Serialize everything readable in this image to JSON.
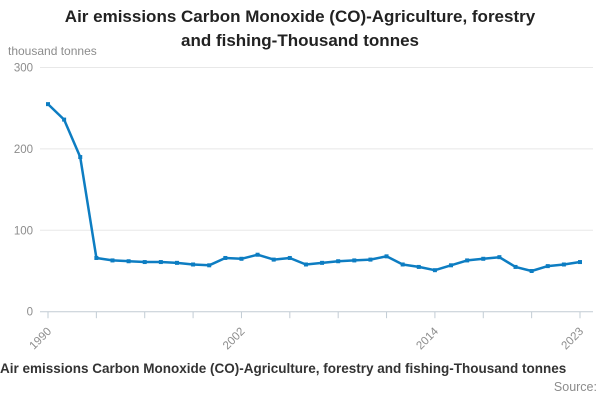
{
  "header": {
    "title_line1": "Air emissions Carbon Monoxide (CO)-Agriculture, forestry",
    "title_line2": "and fishing-Thousand tonnes"
  },
  "y_axis_unit": "thousand tonnes",
  "footer": {
    "title": "Air emissions Carbon Monoxide (CO)-Agriculture, forestry and fishing-Thousand tonnes",
    "source_label": "Source:"
  },
  "colors": {
    "series": "#0d7dc2",
    "gridline": "#e8e8e8",
    "axis": "#c2ccd4",
    "tick_text": "#8c8c8c"
  },
  "chart_data": {
    "type": "line",
    "title": "Air emissions Carbon Monoxide (CO)-Agriculture, forestry and fishing-Thousand tonnes",
    "ylabel": "thousand tonnes",
    "xlabel": "",
    "x": [
      1990,
      1991,
      1992,
      1993,
      1994,
      1995,
      1996,
      1997,
      1998,
      1999,
      2000,
      2001,
      2002,
      2003,
      2004,
      2005,
      2006,
      2007,
      2008,
      2009,
      2010,
      2011,
      2012,
      2013,
      2014,
      2015,
      2016,
      2017,
      2018,
      2019,
      2020,
      2021,
      2022,
      2023
    ],
    "values": [
      255,
      236,
      190,
      66,
      63,
      62,
      61,
      61,
      60,
      58,
      57,
      66,
      65,
      70,
      64,
      66,
      58,
      60,
      62,
      63,
      64,
      68,
      58,
      55,
      51,
      57,
      63,
      65,
      67,
      55,
      50,
      56,
      58,
      61
    ],
    "ylim": [
      0,
      300
    ],
    "y_ticks": [
      0,
      100,
      200,
      300
    ],
    "x_tick_years": [
      1990,
      1993,
      1996,
      1999,
      2002,
      2005,
      2008,
      2011,
      2014,
      2017,
      2020,
      2023
    ],
    "x_labeled_ticks": [
      1990,
      2002,
      2014,
      2023
    ],
    "grid": "horizontal",
    "legend": "none",
    "marker": "square",
    "series_color": "#0d7dc2"
  }
}
